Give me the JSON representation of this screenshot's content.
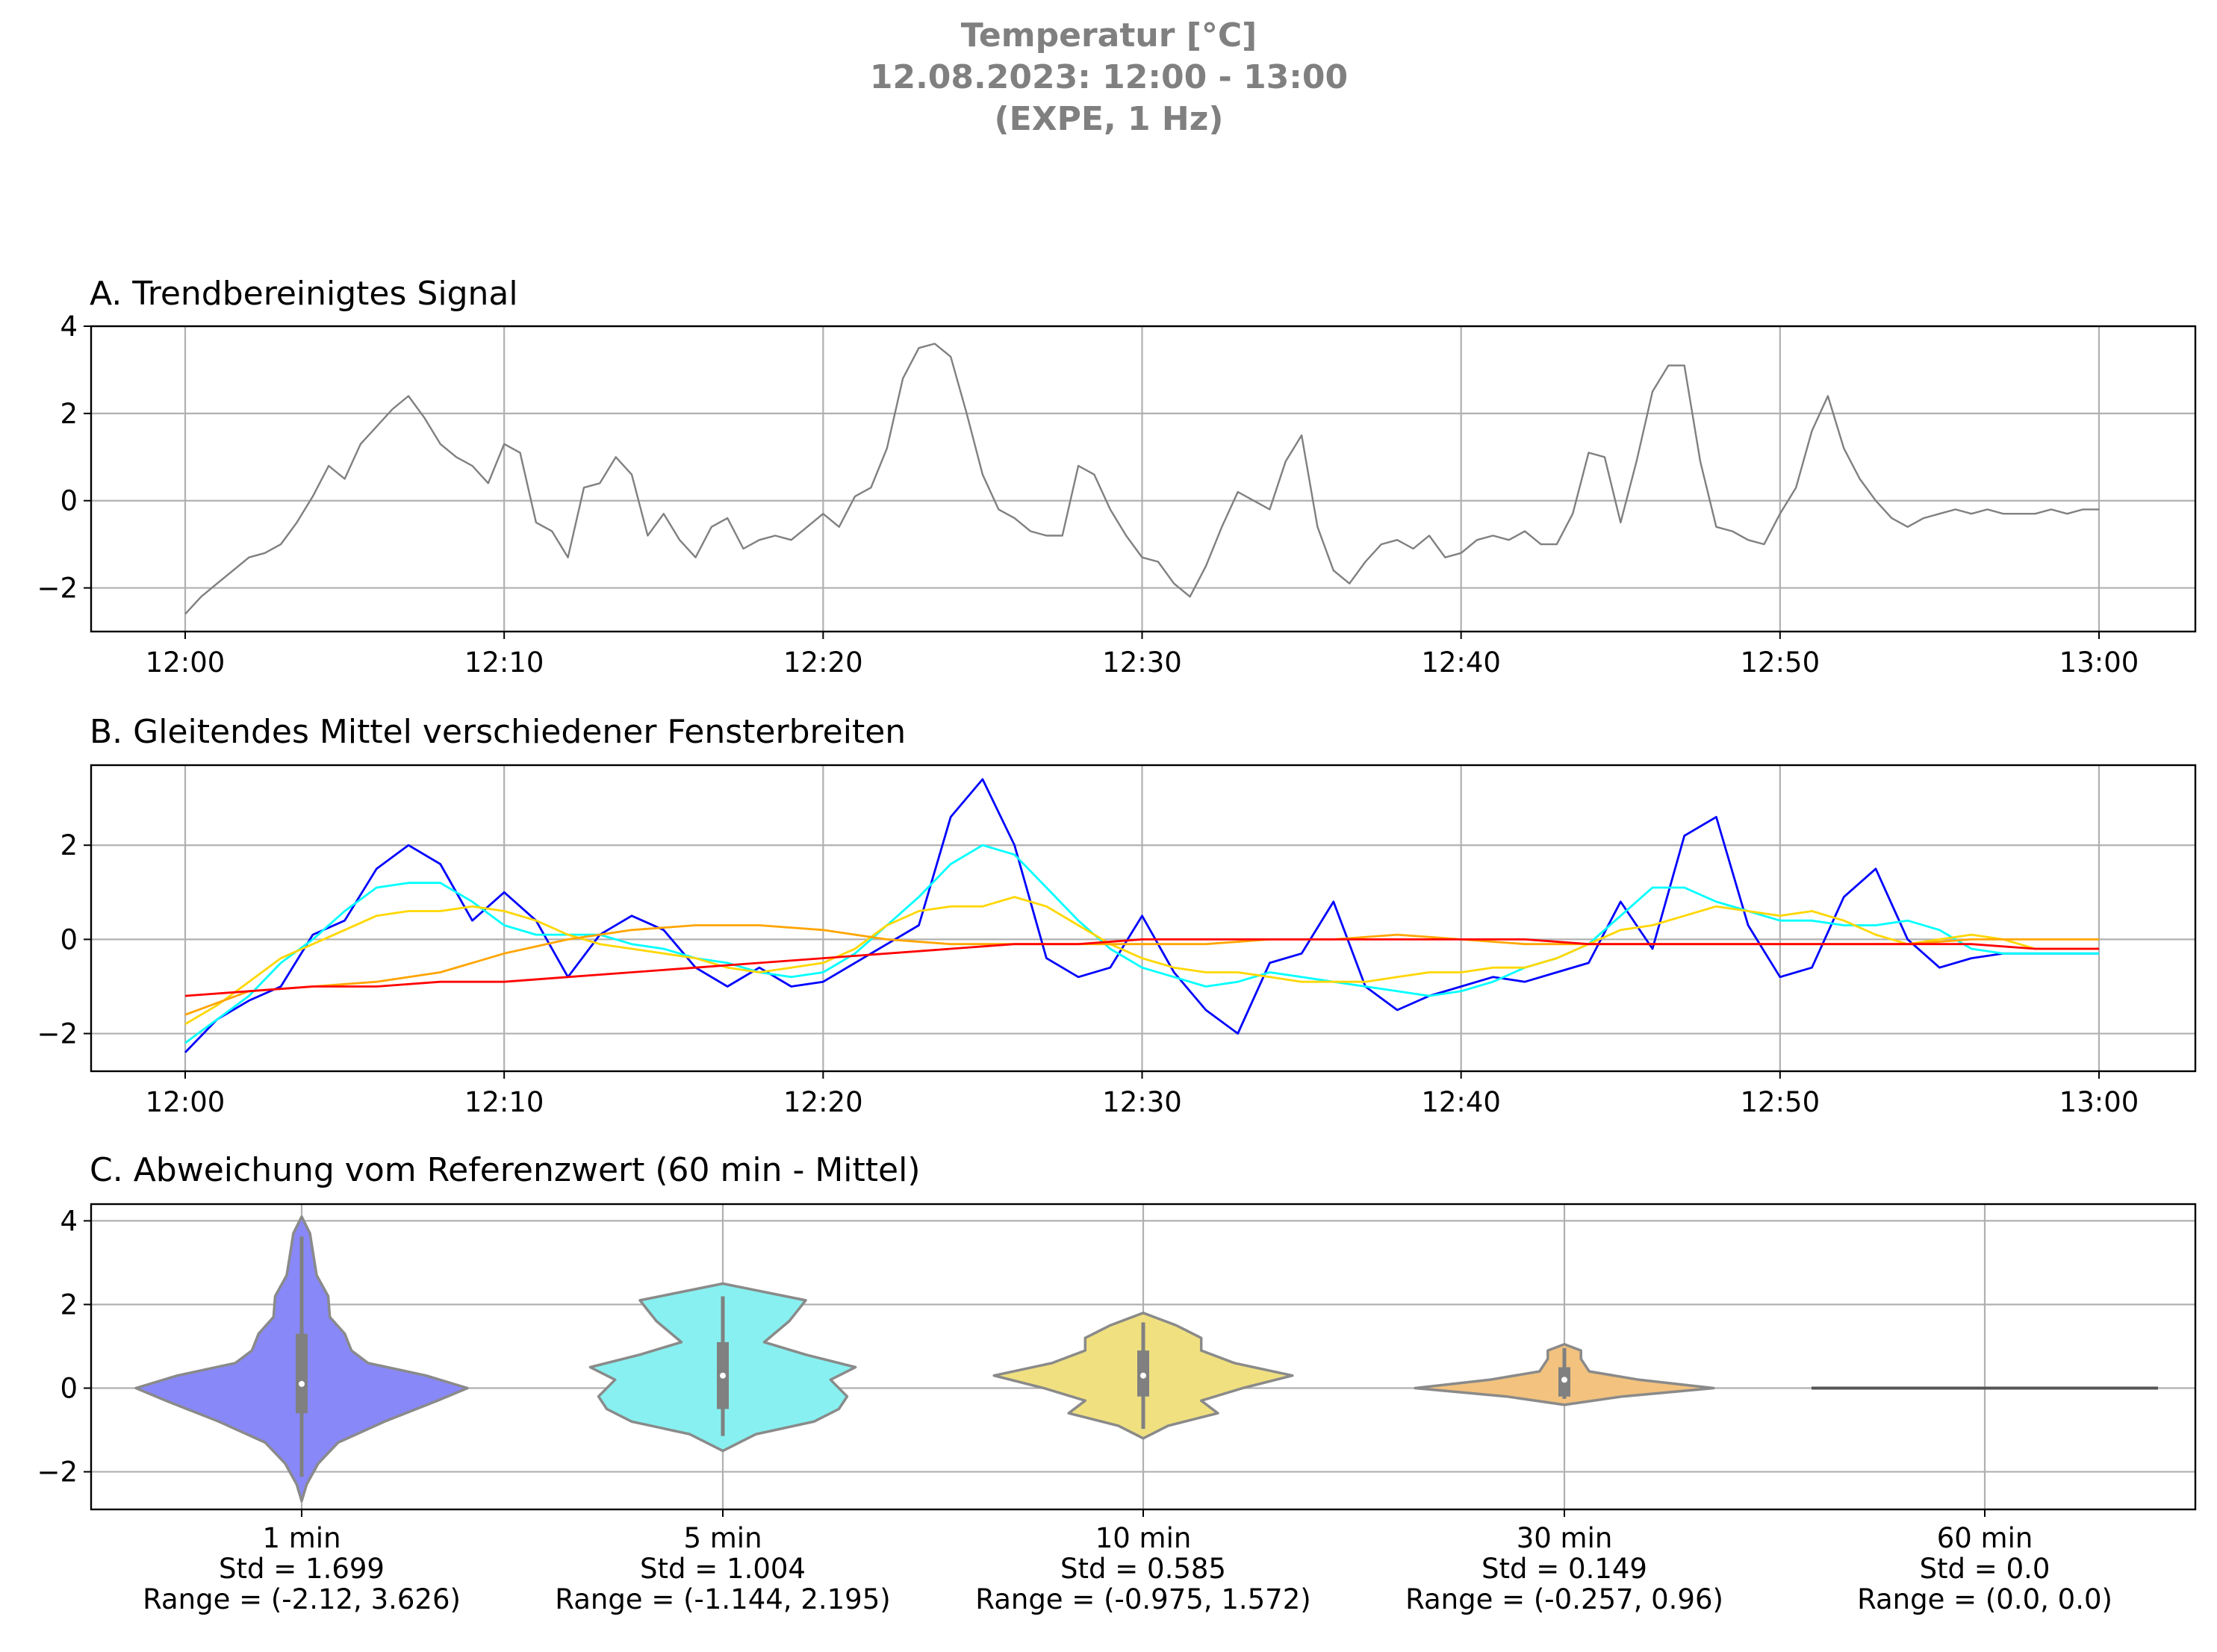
{
  "suptitle": [
    "Temperatur [°C]",
    "12.08.2023:  12:00 -  13:00",
    "(EXPE, 1 Hz)"
  ],
  "chart_data": [
    {
      "type": "line",
      "title": "A. Trendbereinigtes Signal",
      "xlabel": "",
      "ylabel": "",
      "x_unit": "minutes after 12:00",
      "xticks": [
        "12:00",
        "12:10",
        "12:20",
        "12:30",
        "12:40",
        "12:50",
        "13:00"
      ],
      "yticks": [
        -2,
        0,
        2,
        4
      ],
      "xlim": [
        "11:57",
        "13:03"
      ],
      "ylim": [
        -3.0,
        4.0
      ],
      "grid": true,
      "series": [
        {
          "color": "#808080",
          "x": [
            0,
            0.5,
            1,
            1.5,
            2,
            2.5,
            3,
            3.5,
            4,
            4.5,
            5,
            5.5,
            6,
            6.5,
            7,
            7.5,
            8,
            8.5,
            9,
            9.5,
            10,
            10.5,
            11,
            11.5,
            12,
            12.5,
            13,
            13.5,
            14,
            14.5,
            15,
            15.5,
            16,
            16.5,
            17,
            17.5,
            18,
            18.5,
            19,
            19.5,
            20,
            20.5,
            21,
            21.5,
            22,
            22.5,
            23,
            23.5,
            24,
            24.5,
            25,
            25.5,
            26,
            26.5,
            27,
            27.5,
            28,
            28.5,
            29,
            29.5,
            30,
            30.5,
            31,
            31.5,
            32,
            32.5,
            33,
            33.5,
            34,
            34.5,
            35,
            35.5,
            36,
            36.5,
            37,
            37.5,
            38,
            38.5,
            39,
            39.5,
            40,
            40.5,
            41,
            41.5,
            42,
            42.5,
            43,
            43.5,
            44,
            44.5,
            45,
            45.5,
            46,
            46.5,
            47,
            47.5,
            48,
            48.5,
            49,
            49.5,
            50,
            50.5,
            51,
            51.5,
            52,
            52.5,
            53,
            53.5,
            54,
            54.5,
            55,
            55.5,
            56,
            56.5,
            57,
            57.5,
            58,
            58.5,
            59,
            59.5,
            60
          ],
          "y": [
            -2.6,
            -2.2,
            -1.9,
            -1.6,
            -1.3,
            -1.2,
            -1.0,
            -0.5,
            0.1,
            0.8,
            0.5,
            1.3,
            1.7,
            2.1,
            2.4,
            1.9,
            1.3,
            1.0,
            0.8,
            0.4,
            1.3,
            1.1,
            -0.5,
            -0.7,
            -1.3,
            0.3,
            0.4,
            1.0,
            0.6,
            -0.8,
            -0.3,
            -0.9,
            -1.3,
            -0.6,
            -0.4,
            -1.1,
            -0.9,
            -0.8,
            -0.9,
            -0.6,
            -0.3,
            -0.6,
            0.1,
            0.3,
            1.2,
            2.8,
            3.5,
            3.6,
            3.3,
            2.0,
            0.6,
            -0.2,
            -0.4,
            -0.7,
            -0.8,
            -0.8,
            0.8,
            0.6,
            -0.2,
            -0.8,
            -1.3,
            -1.4,
            -1.9,
            -2.2,
            -1.5,
            -0.6,
            0.2,
            0.0,
            -0.2,
            0.9,
            1.5,
            -0.6,
            -1.6,
            -1.9,
            -1.4,
            -1.0,
            -0.9,
            -1.1,
            -0.8,
            -1.3,
            -1.2,
            -0.9,
            -0.8,
            -0.9,
            -0.7,
            -1.0,
            -1.0,
            -0.3,
            1.1,
            1.0,
            -0.5,
            0.9,
            2.5,
            3.1,
            3.1,
            0.9,
            -0.6,
            -0.7,
            -0.9,
            -1.0,
            -0.3,
            0.3,
            1.6,
            2.4,
            1.2,
            0.5,
            0.0,
            -0.4,
            -0.6,
            -0.4,
            -0.3,
            -0.2,
            -0.3,
            -0.2,
            -0.3,
            -0.3,
            -0.3,
            -0.2,
            -0.3,
            -0.2,
            -0.2
          ]
        }
      ]
    },
    {
      "type": "line",
      "title": "B. Gleitendes Mittel verschiedener Fensterbreiten",
      "xlabel": "",
      "ylabel": "",
      "x_unit": "minutes after 12:00",
      "xticks": [
        "12:00",
        "12:10",
        "12:20",
        "12:30",
        "12:40",
        "12:50",
        "13:00"
      ],
      "yticks": [
        -2,
        0,
        2
      ],
      "xlim": [
        "11:57",
        "13:03"
      ],
      "ylim": [
        -2.8,
        3.7
      ],
      "grid": true,
      "series": [
        {
          "color": "#0000ff",
          "x": [
            0,
            1,
            2,
            3,
            4,
            5,
            6,
            7,
            8,
            9,
            10,
            11,
            12,
            13,
            14,
            15,
            16,
            17,
            18,
            19,
            20,
            21,
            22,
            23,
            24,
            25,
            26,
            27,
            28,
            29,
            30,
            31,
            32,
            33,
            34,
            35,
            36,
            37,
            38,
            39,
            40,
            41,
            42,
            43,
            44,
            45,
            46,
            47,
            48,
            49,
            50,
            51,
            52,
            53,
            54,
            55,
            56,
            57,
            58,
            59,
            60
          ],
          "y": [
            -2.4,
            -1.7,
            -1.3,
            -1.0,
            0.1,
            0.4,
            1.5,
            2.0,
            1.6,
            0.4,
            1.0,
            0.4,
            -0.8,
            0.1,
            0.5,
            0.2,
            -0.6,
            -1.0,
            -0.6,
            -1.0,
            -0.9,
            -0.5,
            -0.1,
            0.3,
            2.6,
            3.4,
            2.0,
            -0.4,
            -0.8,
            -0.6,
            0.5,
            -0.7,
            -1.5,
            -2.0,
            -0.5,
            -0.3,
            0.8,
            -1.0,
            -1.5,
            -1.2,
            -1.0,
            -0.8,
            -0.9,
            -0.7,
            -0.5,
            0.8,
            -0.2,
            2.2,
            2.6,
            0.3,
            -0.8,
            -0.6,
            0.9,
            1.5,
            0.0,
            -0.6,
            -0.4,
            -0.3,
            -0.3,
            -0.3,
            -0.3
          ]
        },
        {
          "color": "#00ffff",
          "x": [
            0,
            1,
            2,
            3,
            4,
            5,
            6,
            7,
            8,
            9,
            10,
            11,
            12,
            13,
            14,
            15,
            16,
            17,
            18,
            19,
            20,
            21,
            22,
            23,
            24,
            25,
            26,
            27,
            28,
            29,
            30,
            31,
            32,
            33,
            34,
            35,
            36,
            37,
            38,
            39,
            40,
            41,
            42,
            43,
            44,
            45,
            46,
            47,
            48,
            49,
            50,
            51,
            52,
            53,
            54,
            55,
            56,
            57,
            58,
            59,
            60
          ],
          "y": [
            -2.2,
            -1.7,
            -1.2,
            -0.5,
            0.0,
            0.6,
            1.1,
            1.2,
            1.2,
            0.8,
            0.3,
            0.1,
            0.1,
            0.1,
            -0.1,
            -0.2,
            -0.4,
            -0.5,
            -0.7,
            -0.8,
            -0.7,
            -0.3,
            0.3,
            0.9,
            1.6,
            2.0,
            1.8,
            1.1,
            0.4,
            -0.2,
            -0.6,
            -0.8,
            -1.0,
            -0.9,
            -0.7,
            -0.8,
            -0.9,
            -1.0,
            -1.1,
            -1.2,
            -1.1,
            -0.9,
            -0.6,
            -0.4,
            -0.1,
            0.5,
            1.1,
            1.1,
            0.8,
            0.6,
            0.4,
            0.4,
            0.3,
            0.3,
            0.4,
            0.2,
            -0.2,
            -0.3,
            -0.3,
            -0.3,
            -0.3
          ]
        },
        {
          "color": "#ffd700",
          "x": [
            0,
            1,
            2,
            3,
            4,
            5,
            6,
            7,
            8,
            9,
            10,
            11,
            12,
            13,
            14,
            15,
            16,
            17,
            18,
            19,
            20,
            21,
            22,
            23,
            24,
            25,
            26,
            27,
            28,
            29,
            30,
            31,
            32,
            33,
            34,
            35,
            36,
            37,
            38,
            39,
            40,
            41,
            42,
            43,
            44,
            45,
            46,
            47,
            48,
            49,
            50,
            51,
            52,
            53,
            54,
            55,
            56,
            57,
            58,
            59,
            60
          ],
          "y": [
            -1.8,
            -1.4,
            -0.9,
            -0.4,
            -0.1,
            0.2,
            0.5,
            0.6,
            0.6,
            0.7,
            0.6,
            0.4,
            0.1,
            -0.1,
            -0.2,
            -0.3,
            -0.4,
            -0.6,
            -0.7,
            -0.6,
            -0.5,
            -0.2,
            0.3,
            0.6,
            0.7,
            0.7,
            0.9,
            0.7,
            0.3,
            -0.1,
            -0.4,
            -0.6,
            -0.7,
            -0.7,
            -0.8,
            -0.9,
            -0.9,
            -0.9,
            -0.8,
            -0.7,
            -0.7,
            -0.6,
            -0.6,
            -0.4,
            -0.1,
            0.2,
            0.3,
            0.5,
            0.7,
            0.6,
            0.5,
            0.6,
            0.4,
            0.1,
            -0.1,
            0.0,
            0.1,
            0.0,
            -0.2,
            -0.2,
            -0.2
          ]
        },
        {
          "color": "#ffa500",
          "x": [
            0,
            2,
            4,
            6,
            8,
            10,
            12,
            14,
            16,
            18,
            20,
            22,
            24,
            26,
            28,
            30,
            32,
            34,
            36,
            38,
            40,
            42,
            44,
            46,
            48,
            50,
            52,
            54,
            56,
            58,
            60
          ],
          "y": [
            -1.6,
            -1.1,
            -1.0,
            -0.9,
            -0.7,
            -0.3,
            0.0,
            0.2,
            0.3,
            0.3,
            0.2,
            0.0,
            -0.1,
            -0.1,
            -0.1,
            -0.1,
            -0.1,
            0.0,
            0.0,
            0.1,
            0.0,
            -0.1,
            -0.1,
            -0.1,
            -0.1,
            -0.1,
            -0.1,
            -0.1,
            0.0,
            0.0,
            0.0
          ]
        },
        {
          "color": "#ff0000",
          "x": [
            0,
            2,
            4,
            6,
            8,
            10,
            12,
            14,
            16,
            18,
            20,
            22,
            24,
            26,
            28,
            30,
            32,
            34,
            36,
            38,
            40,
            42,
            44,
            46,
            48,
            50,
            52,
            54,
            56,
            58,
            60
          ],
          "y": [
            -1.2,
            -1.1,
            -1.0,
            -1.0,
            -0.9,
            -0.9,
            -0.8,
            -0.7,
            -0.6,
            -0.5,
            -0.4,
            -0.3,
            -0.2,
            -0.1,
            -0.1,
            0.0,
            0.0,
            0.0,
            0.0,
            0.0,
            0.0,
            0.0,
            -0.1,
            -0.1,
            -0.1,
            -0.1,
            -0.1,
            -0.1,
            -0.1,
            -0.2,
            -0.2
          ]
        }
      ]
    },
    {
      "type": "violin",
      "title": "C. Abweichung vom Referenzwert (60 min - Mittel)",
      "xlabel": "",
      "ylabel": "",
      "yticks": [
        -2,
        0,
        2,
        4
      ],
      "ylim": [
        -2.9,
        4.4
      ],
      "grid": true,
      "violins": [
        {
          "label": [
            "1 min",
            "Std = 1.699",
            "Range = (-2.12, 3.626)"
          ],
          "color": "#8888f8",
          "min": -2.12,
          "max": 3.626,
          "q1": -0.6,
          "median": 0.1,
          "q3": 1.3,
          "profile": [
            [
              -2.7,
              0.0
            ],
            [
              -2.3,
              0.03
            ],
            [
              -1.8,
              0.1
            ],
            [
              -1.3,
              0.22
            ],
            [
              -0.8,
              0.5
            ],
            [
              -0.3,
              0.82
            ],
            [
              0.0,
              1.0
            ],
            [
              0.3,
              0.75
            ],
            [
              0.6,
              0.4
            ],
            [
              0.9,
              0.3
            ],
            [
              1.3,
              0.26
            ],
            [
              1.7,
              0.17
            ],
            [
              2.2,
              0.16
            ],
            [
              2.7,
              0.09
            ],
            [
              3.2,
              0.07
            ],
            [
              3.7,
              0.05
            ],
            [
              4.1,
              0.0
            ]
          ]
        },
        {
          "label": [
            "5 min",
            "Std = 1.004",
            "Range = (-1.144, 2.195)"
          ],
          "color": "#88f0f0",
          "min": -1.144,
          "max": 2.195,
          "q1": -0.5,
          "median": 0.3,
          "q3": 1.1,
          "profile": [
            [
              -1.5,
              0.0
            ],
            [
              -1.1,
              0.2
            ],
            [
              -0.8,
              0.55
            ],
            [
              -0.5,
              0.7
            ],
            [
              -0.2,
              0.75
            ],
            [
              0.2,
              0.65
            ],
            [
              0.5,
              0.8
            ],
            [
              0.8,
              0.5
            ],
            [
              1.1,
              0.25
            ],
            [
              1.6,
              0.4
            ],
            [
              2.1,
              0.5
            ],
            [
              2.5,
              0.0
            ]
          ]
        },
        {
          "label": [
            "10 min",
            "Std = 0.585",
            "Range = (-0.975, 1.572)"
          ],
          "color": "#f0e080",
          "min": -0.975,
          "max": 1.572,
          "q1": -0.2,
          "median": 0.3,
          "q3": 0.9,
          "profile": [
            [
              -1.2,
              0.0
            ],
            [
              -0.9,
              0.15
            ],
            [
              -0.6,
              0.45
            ],
            [
              -0.3,
              0.35
            ],
            [
              0.0,
              0.6
            ],
            [
              0.3,
              0.9
            ],
            [
              0.6,
              0.55
            ],
            [
              0.9,
              0.35
            ],
            [
              1.2,
              0.35
            ],
            [
              1.5,
              0.2
            ],
            [
              1.8,
              0.0
            ]
          ]
        },
        {
          "label": [
            "30 min",
            "Std = 0.149",
            "Range = (-0.257, 0.96)"
          ],
          "color": "#f2c27e",
          "min": -0.257,
          "max": 0.96,
          "q1": -0.2,
          "median": 0.2,
          "q3": 0.5,
          "profile": [
            [
              -0.4,
              0.0
            ],
            [
              -0.2,
              0.35
            ],
            [
              0.0,
              0.9
            ],
            [
              0.2,
              0.45
            ],
            [
              0.4,
              0.15
            ],
            [
              0.7,
              0.1
            ],
            [
              0.9,
              0.1
            ],
            [
              1.05,
              0.0
            ]
          ]
        },
        {
          "label": [
            "60 min",
            "Std = 0.0",
            "Range = (0.0, 0.0)"
          ],
          "color": "#555555",
          "min": 0.0,
          "max": 0.0,
          "q1": 0.0,
          "median": 0.0,
          "q3": 0.0,
          "profile": []
        }
      ]
    }
  ]
}
